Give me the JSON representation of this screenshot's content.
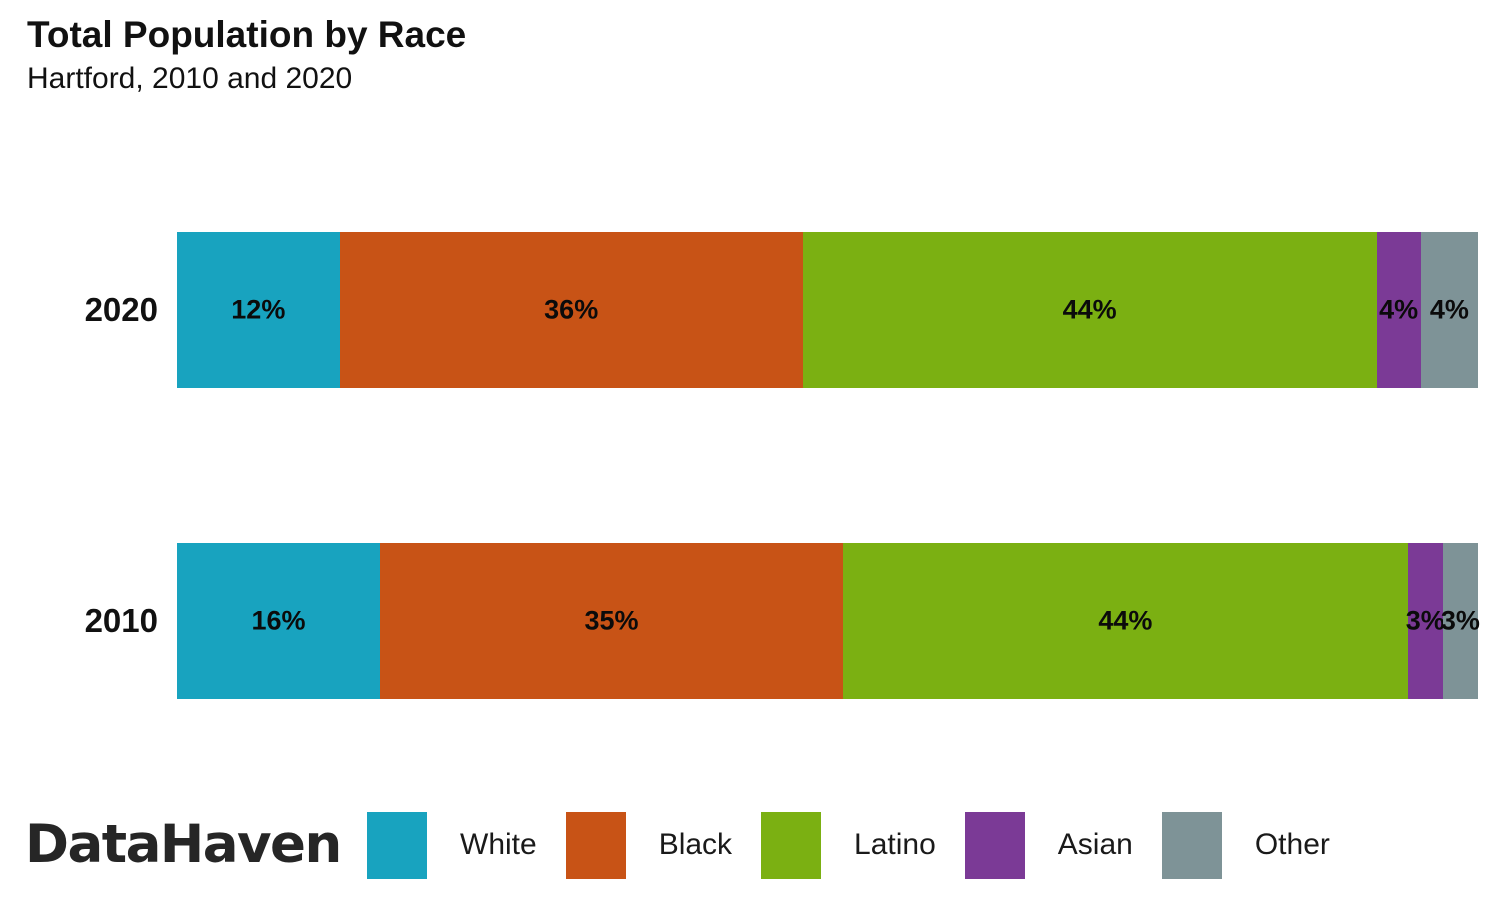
{
  "header": {
    "title": "Total Population by Race",
    "subtitle": "Hartford, 2010 and 2020"
  },
  "brand": {
    "logo_text": "DataHaven"
  },
  "chart_data": {
    "type": "bar",
    "stacked": true,
    "orientation": "horizontal",
    "title": "Total Population by Race",
    "subtitle": "Hartford, 2010 and 2020",
    "categories": [
      "2020",
      "2010"
    ],
    "series": [
      {
        "name": "White",
        "color": "#18a3bf",
        "values": [
          12,
          16
        ],
        "render_widths_pct": [
          12.5,
          15.6
        ]
      },
      {
        "name": "Black",
        "color": "#c85316",
        "values": [
          36,
          35
        ],
        "render_widths_pct": [
          35.6,
          35.6
        ]
      },
      {
        "name": "Latino",
        "color": "#7bb012",
        "values": [
          44,
          44
        ],
        "render_widths_pct": [
          44.1,
          43.4
        ]
      },
      {
        "name": "Asian",
        "color": "#7b3a96",
        "values": [
          4,
          3
        ],
        "render_widths_pct": [
          3.4,
          2.7
        ]
      },
      {
        "name": "Other",
        "color": "#7e9397",
        "values": [
          4,
          3
        ],
        "render_widths_pct": [
          4.4,
          2.7
        ]
      }
    ],
    "value_suffix": "%",
    "value_format": "percent",
    "xlim": [
      0,
      100
    ],
    "grid": false,
    "legend": {
      "position": "bottom",
      "entries": [
        "White",
        "Black",
        "Latino",
        "Asian",
        "Other"
      ]
    }
  }
}
